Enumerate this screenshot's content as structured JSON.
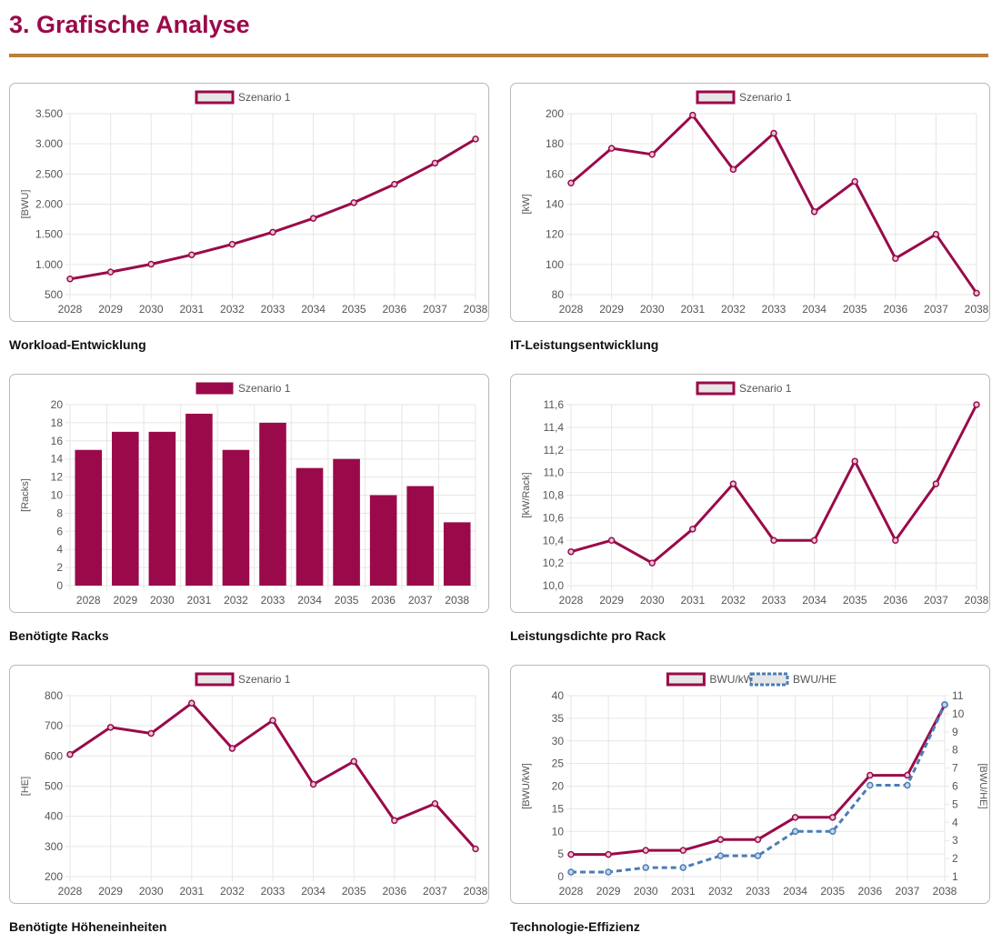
{
  "page": {
    "title": "3. Grafische Analyse",
    "captions": [
      "Workload-Entwicklung",
      "IT-Leistungsentwicklung",
      "Benötigte Racks",
      "Leistungsdichte pro Rack",
      "Benötigte Höheneinheiten",
      "Technologie-Effizienz"
    ]
  },
  "colors": {
    "accent": "#9a0a4a",
    "rule": "#b8803a",
    "secondary_series": "#4a7db5",
    "grid": "#e6e6e6",
    "legend_fill": "#e6e6e6"
  },
  "chart_data": [
    {
      "type": "line",
      "caption": "Workload-Entwicklung",
      "x": [
        "2028",
        "2029",
        "2030",
        "2031",
        "2032",
        "2033",
        "2034",
        "2035",
        "2036",
        "2037",
        "2038"
      ],
      "series": [
        {
          "name": "Szenario 1",
          "values": [
            760,
            875,
            1005,
            1160,
            1335,
            1535,
            1765,
            2025,
            2330,
            2680,
            3080
          ],
          "color": "#9a0a4a"
        }
      ],
      "ylabel": "[BWU]",
      "ylim": [
        500,
        3500
      ],
      "yticks": [
        500,
        1000,
        1500,
        2000,
        2500,
        3000,
        3500
      ],
      "ytick_labels": [
        "500",
        "1.000",
        "1.500",
        "2.000",
        "2.500",
        "3.000",
        "3.500"
      ],
      "grid": true,
      "legend": "top-center"
    },
    {
      "type": "line",
      "caption": "IT-Leistungsentwicklung",
      "x": [
        "2028",
        "2029",
        "2030",
        "2031",
        "2032",
        "2033",
        "2034",
        "2035",
        "2036",
        "2037",
        "2038"
      ],
      "series": [
        {
          "name": "Szenario 1",
          "values": [
            154,
            177,
            173,
            199,
            163,
            187,
            135,
            155,
            104,
            120,
            81
          ],
          "color": "#9a0a4a"
        }
      ],
      "ylabel": "[kW]",
      "ylim": [
        80,
        200
      ],
      "yticks": [
        80,
        100,
        120,
        140,
        160,
        180,
        200
      ],
      "ytick_labels": [
        "80",
        "100",
        "120",
        "140",
        "160",
        "180",
        "200"
      ],
      "grid": true,
      "legend": "top-center"
    },
    {
      "type": "bar",
      "caption": "Benötigte Racks",
      "categories": [
        "2028",
        "2029",
        "2030",
        "2031",
        "2032",
        "2033",
        "2034",
        "2035",
        "2036",
        "2037",
        "2038"
      ],
      "series": [
        {
          "name": "Szenario 1",
          "values": [
            15,
            17,
            17,
            19,
            15,
            18,
            13,
            14,
            10,
            11,
            7
          ],
          "color": "#9a0a4a"
        }
      ],
      "ylabel": "[Racks]",
      "ylim": [
        0,
        20
      ],
      "yticks": [
        0,
        2,
        4,
        6,
        8,
        10,
        12,
        14,
        16,
        18,
        20
      ],
      "ytick_labels": [
        "0",
        "2",
        "4",
        "6",
        "8",
        "10",
        "12",
        "14",
        "16",
        "18",
        "20"
      ],
      "grid": true,
      "legend": "top-center"
    },
    {
      "type": "line",
      "caption": "Leistungsdichte pro Rack",
      "x": [
        "2028",
        "2029",
        "2030",
        "2031",
        "2032",
        "2033",
        "2034",
        "2035",
        "2036",
        "2037",
        "2038"
      ],
      "series": [
        {
          "name": "Szenario 1",
          "values": [
            10.3,
            10.4,
            10.2,
            10.5,
            10.9,
            10.4,
            10.4,
            11.1,
            10.4,
            10.9,
            11.6
          ],
          "color": "#9a0a4a"
        }
      ],
      "ylabel": "[kW/Rack]",
      "ylim": [
        10.0,
        11.6
      ],
      "yticks": [
        10.0,
        10.2,
        10.4,
        10.6,
        10.8,
        11.0,
        11.2,
        11.4,
        11.6
      ],
      "ytick_labels": [
        "10,0",
        "10,2",
        "10,4",
        "10,6",
        "10,8",
        "11,0",
        "11,2",
        "11,4",
        "11,6"
      ],
      "grid": true,
      "legend": "top-center"
    },
    {
      "type": "line",
      "caption": "Benötigte Höheneinheiten",
      "x": [
        "2028",
        "2029",
        "2030",
        "2031",
        "2032",
        "2033",
        "2034",
        "2035",
        "2036",
        "2037",
        "2038"
      ],
      "series": [
        {
          "name": "Szenario 1",
          "values": [
            605,
            695,
            675,
            775,
            625,
            718,
            506,
            582,
            386,
            442,
            292
          ],
          "color": "#9a0a4a"
        }
      ],
      "ylabel": "[HE]",
      "ylim": [
        200,
        800
      ],
      "yticks": [
        200,
        300,
        400,
        500,
        600,
        700,
        800
      ],
      "ytick_labels": [
        "200",
        "300",
        "400",
        "500",
        "600",
        "700",
        "800"
      ],
      "grid": true,
      "legend": "top-center"
    },
    {
      "type": "line",
      "caption": "Technologie-Effizienz",
      "x": [
        "2028",
        "2029",
        "2030",
        "2031",
        "2032",
        "2033",
        "2034",
        "2035",
        "2036",
        "2037",
        "2038"
      ],
      "series": [
        {
          "name": "BWU/kW",
          "values": [
            4.9,
            4.9,
            5.8,
            5.8,
            8.2,
            8.2,
            13.1,
            13.1,
            22.4,
            22.4,
            38.0
          ],
          "axis": "left",
          "color": "#9a0a4a"
        },
        {
          "name": "BWU/HE",
          "values": [
            1.25,
            1.25,
            1.5,
            1.5,
            2.15,
            2.15,
            3.5,
            3.5,
            6.05,
            6.05,
            10.5
          ],
          "axis": "right",
          "color": "#4a7db5",
          "dashed": true
        }
      ],
      "ylabel": "[BWU/kW]",
      "ylim": [
        0,
        40
      ],
      "yticks": [
        0,
        5,
        10,
        15,
        20,
        25,
        30,
        35,
        40
      ],
      "ytick_labels": [
        "0",
        "5",
        "10",
        "15",
        "20",
        "25",
        "30",
        "35",
        "40"
      ],
      "y2label": "[BWU/HE]",
      "y2lim": [
        1,
        11
      ],
      "y2ticks": [
        1,
        2,
        3,
        4,
        5,
        6,
        7,
        8,
        9,
        10,
        11
      ],
      "y2tick_labels": [
        "1",
        "2",
        "3",
        "4",
        "5",
        "6",
        "7",
        "8",
        "9",
        "10",
        "11"
      ],
      "grid": true,
      "legend": "top-center"
    }
  ]
}
